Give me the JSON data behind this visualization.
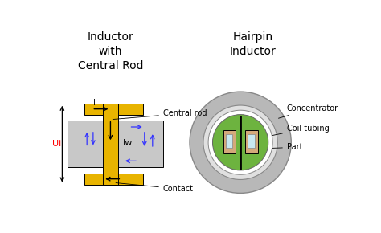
{
  "title_left": "Inductor\nwith\nCentral Rod",
  "title_right": "Hairpin\nInductor",
  "bg_color": "#ffffff",
  "gold_color": "#E8B400",
  "gray_workpiece": "#C8C8C8",
  "gray_outer": "#B8B8B8",
  "gray_coil_ring": "#D0D0D0",
  "blue_arrow": "#3333FF",
  "green_color": "#6DB33F",
  "coil_color": "#D4A97A",
  "light_blue_hole": "#C8E8F0",
  "black": "#000000",
  "label_central_rod": "Central rod",
  "label_contact": "Contact",
  "label_ui": "Ui",
  "label_iw": "Iw",
  "label_i": "I",
  "label_concentrator": "Concentrator",
  "label_coil_tubing": "Coil tubing",
  "label_part": "Part"
}
